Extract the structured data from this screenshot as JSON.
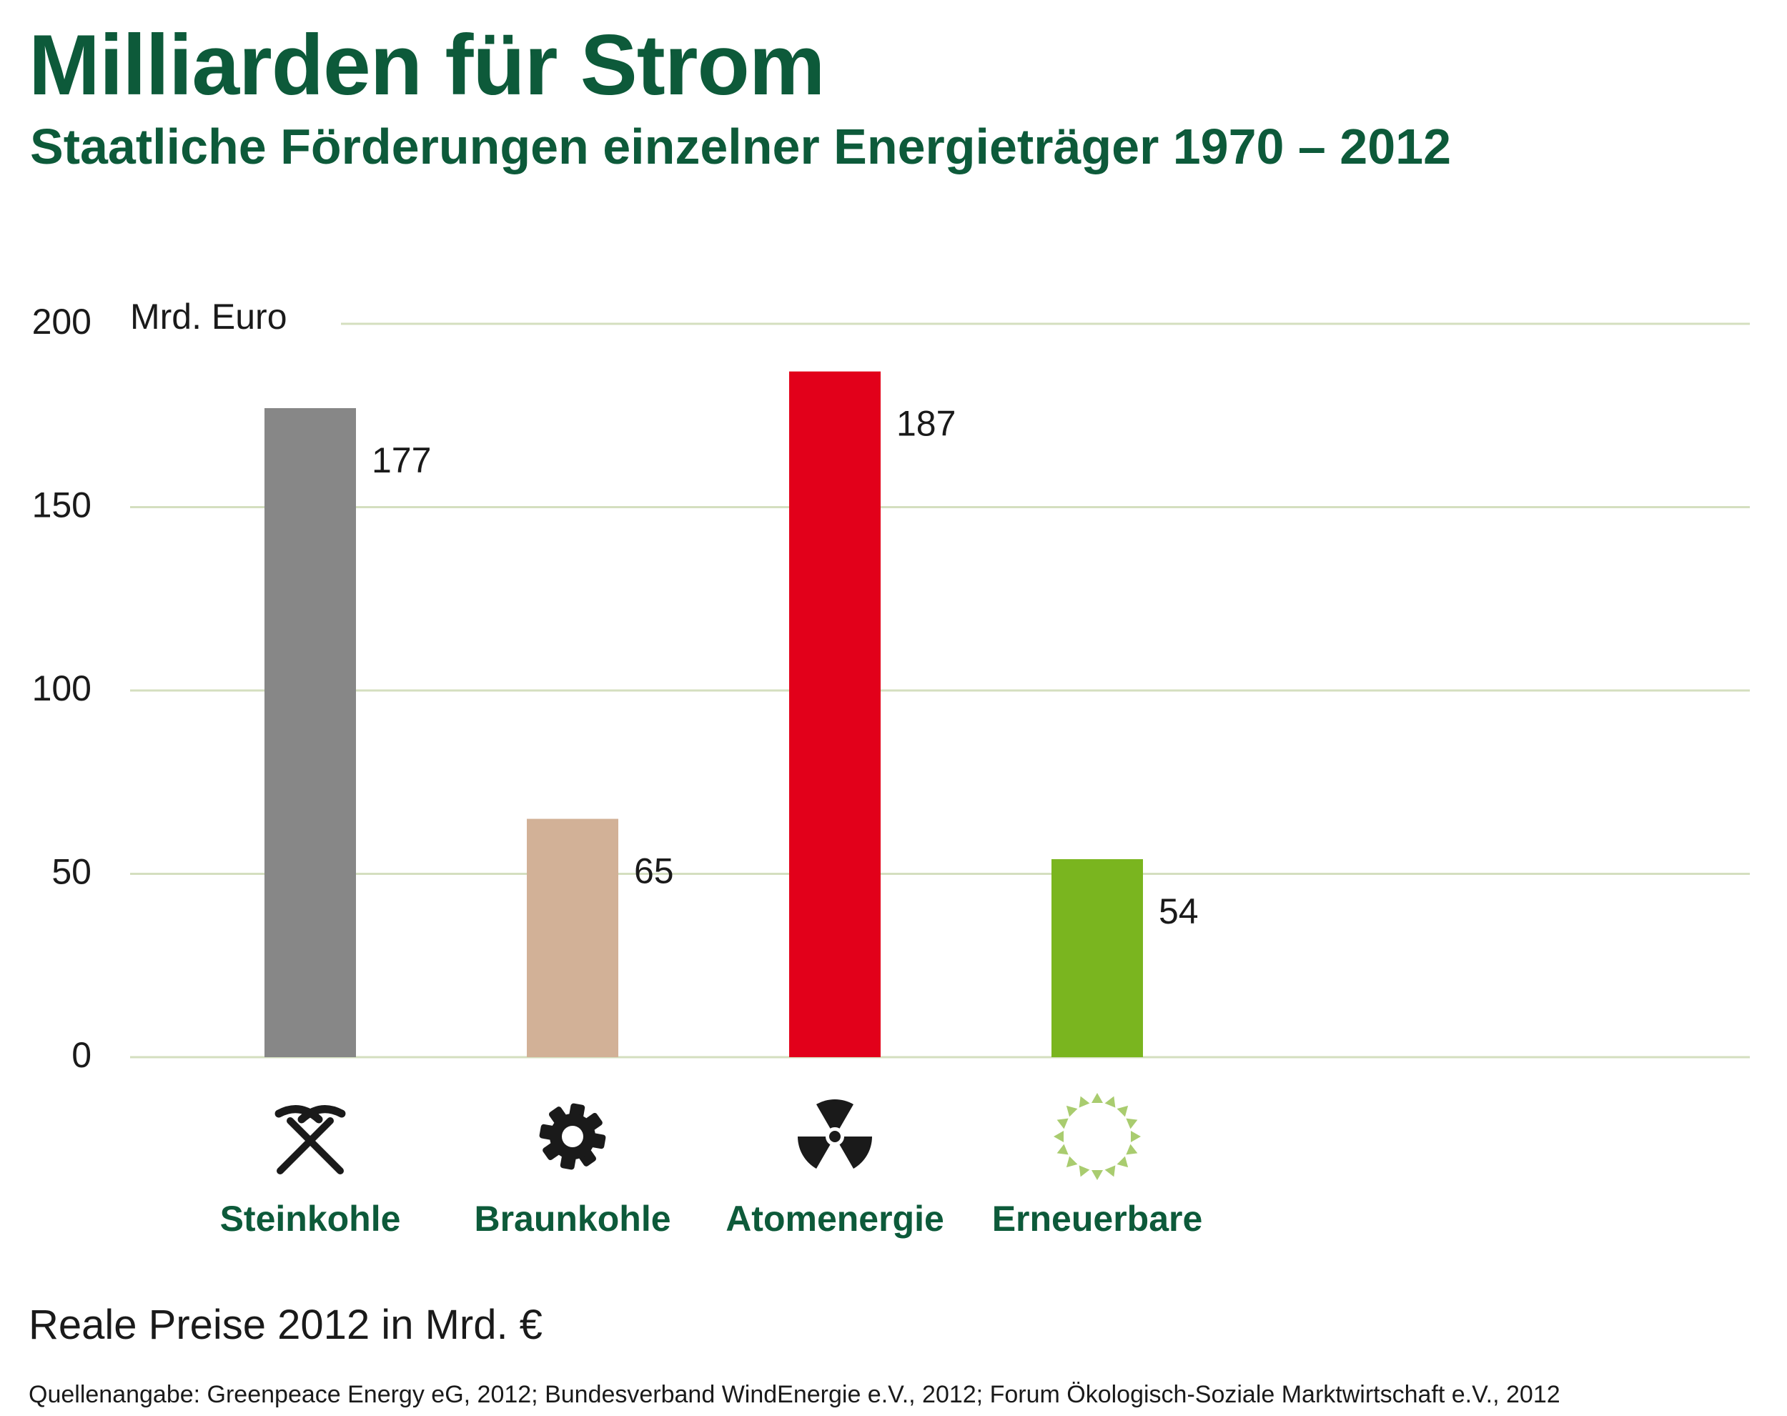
{
  "title": "Milliarden für Strom",
  "subtitle": "Staatliche Förderungen einzelner Energieträger 1970 – 2012",
  "unit_note": "Reale Preise 2012 in Mrd. €",
  "source": "Quellenangabe: Greenpeace Energy eG, 2012; Bundesverband WindEnergie e.V., 2012; Forum Ökologisch-Soziale Marktwirtschaft e.V., 2012",
  "colors": {
    "heading": "#0d5a3a",
    "gridline": "#d4dfbf",
    "text": "#1a1a1a"
  },
  "chart_data": {
    "type": "bar",
    "ylabel": "Mrd. Euro",
    "ylim": [
      0,
      200
    ],
    "yticks": [
      0,
      50,
      100,
      150,
      200
    ],
    "grid": true,
    "categories": [
      "Steinkohle",
      "Braunkohle",
      "Atomenergie",
      "Erneuerbare"
    ],
    "values": [
      177,
      65,
      187,
      54
    ],
    "value_labels": [
      "177",
      "65",
      "187",
      "54"
    ],
    "bar_colors": [
      "#878787",
      "#d2b197",
      "#e2001a",
      "#7ab51f"
    ],
    "icons": [
      "pickaxe-icon",
      "gear-icon",
      "radiation-icon",
      "sun-icon"
    ],
    "icon_colors": [
      "#1a1a1a",
      "#1a1a1a",
      "#1a1a1a",
      "#a9cc6f"
    ]
  }
}
